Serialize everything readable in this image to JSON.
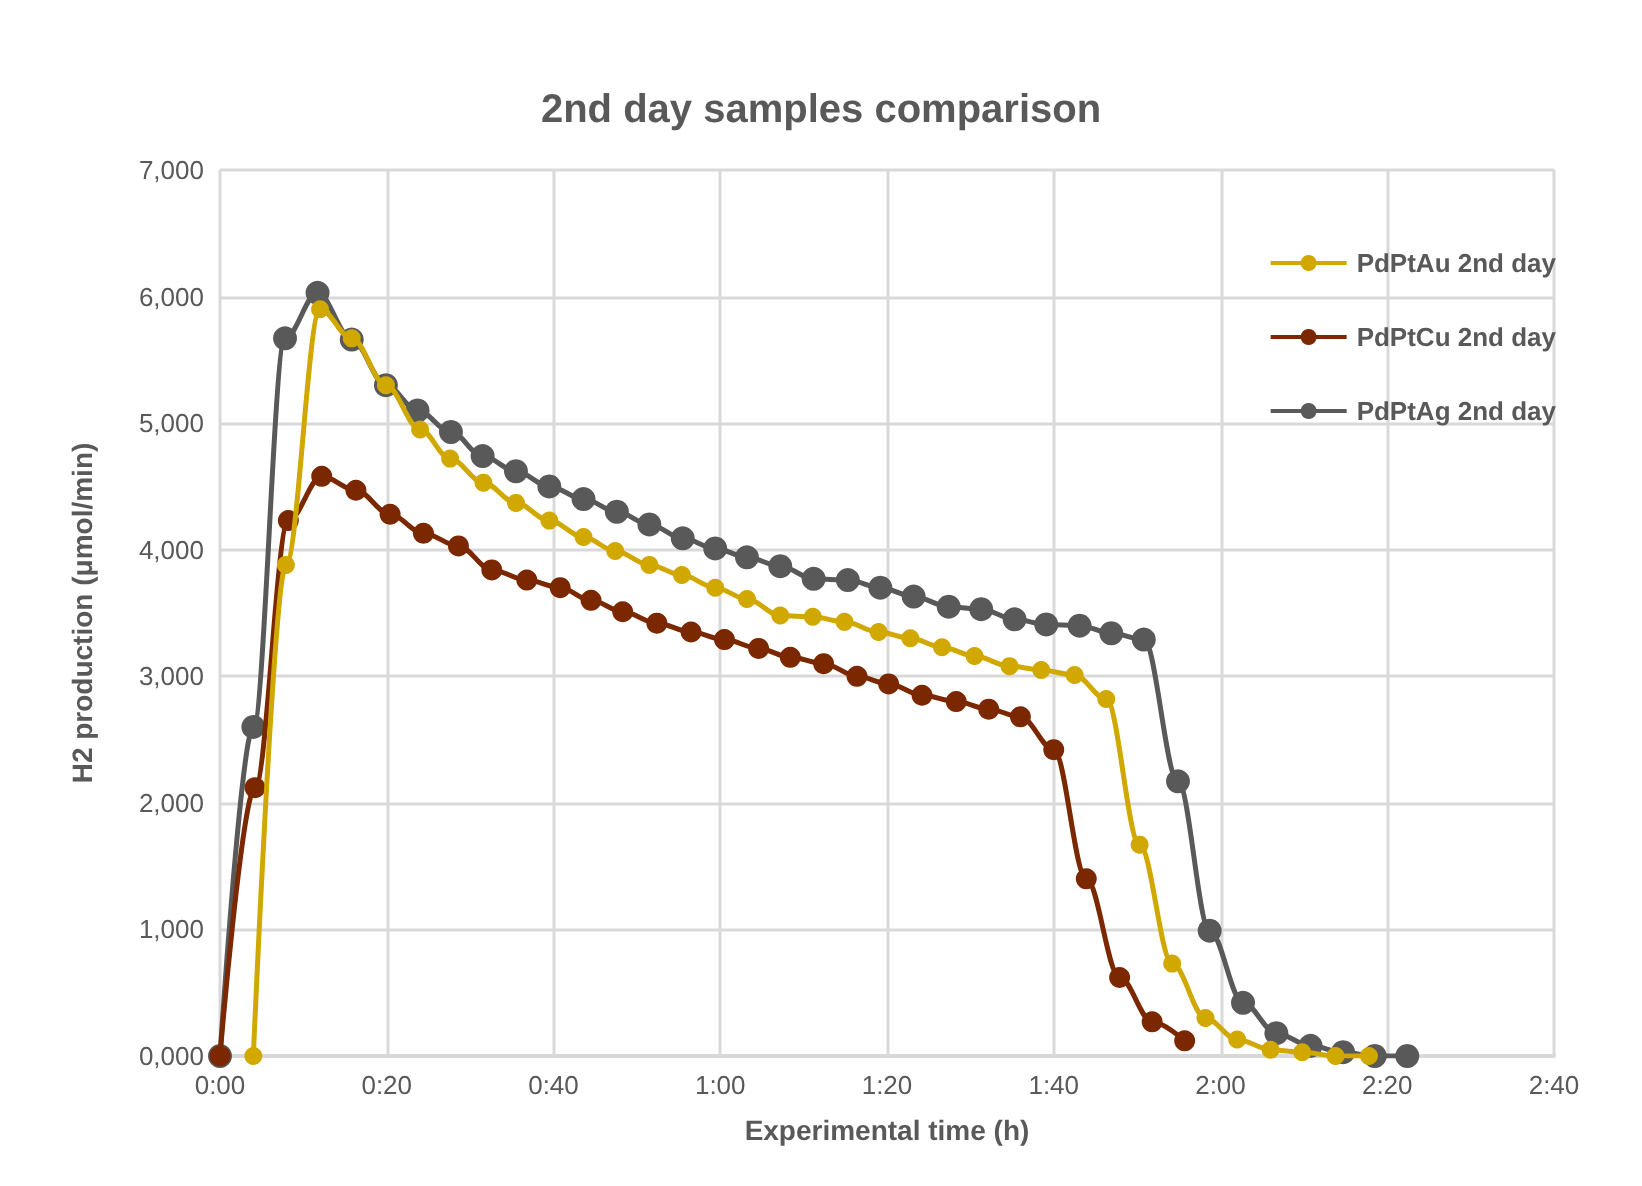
{
  "chart_data": {
    "type": "line",
    "title": "2nd day samples comparison",
    "xlabel": "Experimental time (h)",
    "ylabel": "H2 production (μmol/min)",
    "xlim": [
      0,
      160
    ],
    "xticks": [
      {
        "value": 0,
        "label": "0:00"
      },
      {
        "value": 20,
        "label": "0:20"
      },
      {
        "value": 40,
        "label": "0:40"
      },
      {
        "value": 60,
        "label": "1:00"
      },
      {
        "value": 80,
        "label": "1:20"
      },
      {
        "value": 100,
        "label": "1:40"
      },
      {
        "value": 120,
        "label": "2:00"
      },
      {
        "value": 140,
        "label": "2:20"
      },
      {
        "value": 160,
        "label": "2:40"
      }
    ],
    "ylim": [
      0,
      7000
    ],
    "yticks": [
      {
        "value": 0,
        "label": "0,000"
      },
      {
        "value": 1000,
        "label": "1,000"
      },
      {
        "value": 2000,
        "label": "2,000"
      },
      {
        "value": 3000,
        "label": "3,000"
      },
      {
        "value": 4000,
        "label": "4,000"
      },
      {
        "value": 5000,
        "label": "5,000"
      },
      {
        "value": 6000,
        "label": "6,000"
      },
      {
        "value": 7000,
        "label": "7,000"
      }
    ],
    "grid": true,
    "legend": "top right",
    "marker": "circle",
    "series": [
      {
        "name": "PdPtAu 2nd day",
        "color": "#d0a800",
        "x": [
          4.0,
          7.9,
          12.0,
          15.8,
          19.9,
          24.0,
          27.6,
          31.6,
          35.5,
          39.5,
          43.6,
          47.4,
          51.5,
          55.4,
          59.4,
          63.2,
          67.2,
          71.1,
          74.9,
          79.0,
          82.8,
          86.6,
          90.5,
          94.7,
          98.5,
          102.5,
          106.3,
          110.3,
          114.2,
          118.2,
          122.0,
          126.0,
          129.8,
          133.8,
          137.8
        ],
        "values": [
          0,
          3880,
          5900,
          5670,
          5300,
          4950,
          4720,
          4530,
          4370,
          4230,
          4100,
          3990,
          3880,
          3800,
          3700,
          3610,
          3480,
          3470,
          3430,
          3350,
          3300,
          3230,
          3160,
          3080,
          3050,
          3010,
          2820,
          1670,
          730,
          300,
          130,
          50,
          30,
          0,
          0
        ]
      },
      {
        "name": "PdPtCu 2nd day",
        "color": "#7b2800",
        "x": [
          0,
          4.2,
          8.2,
          12.2,
          16.3,
          20.4,
          24.4,
          28.6,
          32.6,
          36.8,
          40.8,
          44.5,
          48.3,
          52.4,
          56.5,
          60.5,
          64.6,
          68.4,
          72.4,
          76.4,
          80.2,
          84.2,
          88.3,
          92.2,
          96.0,
          100.0,
          103.9,
          107.9,
          111.8,
          115.7
        ],
        "values": [
          0,
          2120,
          4230,
          4580,
          4470,
          4280,
          4130,
          4030,
          3840,
          3760,
          3700,
          3600,
          3510,
          3420,
          3350,
          3290,
          3220,
          3150,
          3100,
          3000,
          2940,
          2850,
          2800,
          2740,
          2680,
          2420,
          1400,
          620,
          270,
          120
        ]
      },
      {
        "name": "PdPtAg 2nd day",
        "color": "#595959",
        "x": [
          0,
          4.0,
          7.8,
          11.7,
          15.8,
          19.9,
          23.7,
          27.7,
          31.5,
          35.5,
          39.5,
          43.6,
          47.6,
          51.5,
          55.5,
          59.4,
          63.2,
          67.2,
          71.2,
          75.3,
          79.2,
          83.2,
          87.4,
          91.3,
          95.3,
          99.1,
          103.1,
          106.9,
          110.8,
          114.9,
          118.7,
          122.7,
          126.7,
          130.8,
          134.7,
          138.5,
          142.4
        ],
        "values": [
          0,
          2600,
          5670,
          6030,
          5660,
          5300,
          5100,
          4930,
          4740,
          4620,
          4500,
          4400,
          4300,
          4200,
          4090,
          4010,
          3940,
          3870,
          3770,
          3760,
          3700,
          3630,
          3550,
          3530,
          3450,
          3410,
          3400,
          3340,
          3290,
          2170,
          990,
          420,
          180,
          80,
          30,
          0,
          0
        ]
      }
    ]
  }
}
